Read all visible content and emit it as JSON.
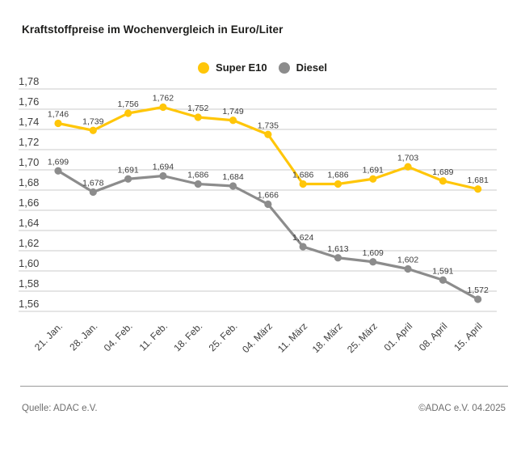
{
  "title": "Kraftstoffpreise im Wochenvergleich in Euro/Liter",
  "legend": {
    "items": [
      {
        "label": "Super E10",
        "color": "#FFC609"
      },
      {
        "label": "Diesel",
        "color": "#8C8C8C"
      }
    ]
  },
  "footer": {
    "source": "Quelle: ADAC e.V.",
    "copyright": "©ADAC e.V. 04.2025"
  },
  "chart_data": {
    "type": "line",
    "title": "Kraftstoffpreise im Wochenvergleich in Euro/Liter",
    "categories": [
      "21. Jan.",
      "28. Jan.",
      "04. Feb.",
      "11. Feb.",
      "18. Feb.",
      "25. Feb.",
      "04. März",
      "11. März",
      "18. März",
      "25. März",
      "01. April",
      "08. April",
      "15. April"
    ],
    "series": [
      {
        "name": "Super E10",
        "color": "#FFC609",
        "values": [
          1.746,
          1.739,
          1.756,
          1.762,
          1.752,
          1.749,
          1.735,
          1.686,
          1.686,
          1.691,
          1.703,
          1.689,
          1.681
        ],
        "value_labels": [
          "1,746",
          "1,739",
          "1,756",
          "1,762",
          "1,752",
          "1,749",
          "1,735",
          "1,686",
          "1,686",
          "1,691",
          "1,703",
          "1,689",
          "1,681"
        ]
      },
      {
        "name": "Diesel",
        "color": "#8C8C8C",
        "values": [
          1.699,
          1.678,
          1.691,
          1.694,
          1.686,
          1.684,
          1.666,
          1.624,
          1.613,
          1.609,
          1.602,
          1.591,
          1.572
        ],
        "value_labels": [
          "1,699",
          "1,678",
          "1,691",
          "1,694",
          "1,686",
          "1,684",
          "1,666",
          "1,624",
          "1,613",
          "1,609",
          "1,602",
          "1,591",
          "1,572"
        ]
      }
    ],
    "xlabel": "",
    "ylabel": "Euro/Liter",
    "ylim": [
      1.56,
      1.78
    ],
    "ytick_step": 0.02,
    "ytick_labels": [
      "1,78",
      "1,76",
      "1,74",
      "1,72",
      "1,70",
      "1,68",
      "1,66",
      "1,64",
      "1,62",
      "1,60",
      "1,58",
      "1,56"
    ],
    "grid": "horizontal",
    "grid_color": "#CBCBCB",
    "legend_position": "top-center",
    "value_labels_shown": true,
    "decimal_separator": ",",
    "text_color": "#3f3f3f"
  }
}
